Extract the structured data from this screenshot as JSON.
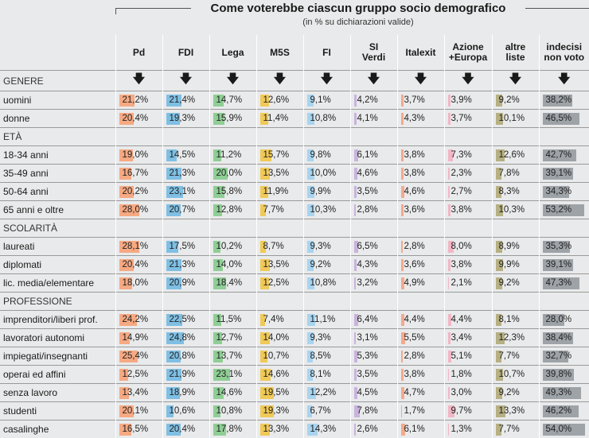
{
  "title": "Come voterebbe ciascun gruppo socio demografico",
  "subtitle": "(in % su dichiarazioni valide)",
  "arrow_glyph": "🡇",
  "chart_data": {
    "type": "table",
    "title": "Come voterebbe ciascun gruppo socio demografico",
    "subtitle": "(in % su dichiarazioni valide)",
    "columns": [
      {
        "label": "Pd",
        "color": "#f6a982"
      },
      {
        "label": "FDI",
        "color": "#7fbfe3"
      },
      {
        "label": "Lega",
        "color": "#8fce95"
      },
      {
        "label": "M5S",
        "color": "#f0c957"
      },
      {
        "label": "FI",
        "color": "#a8d4ef"
      },
      {
        "label": "SI\nVerdi",
        "color": "#c9b3dd"
      },
      {
        "label": "Italexit",
        "color": "#f5a98b"
      },
      {
        "label": "Azione\n+Europa",
        "color": "#f2b6c6"
      },
      {
        "label": "altre\nliste",
        "color": "#b6b083"
      },
      {
        "label": "indecisi\nnon voto",
        "color": "#9ea3a8"
      }
    ],
    "rows": [
      {
        "section": "GENERE"
      },
      {
        "label": "uomini",
        "values": [
          "21,2%",
          "21,4%",
          "14,7%",
          "12,6%",
          "9,1%",
          "4,2%",
          "3,7%",
          "3,9%",
          "9,2%",
          "38,2%"
        ]
      },
      {
        "label": "donne",
        "values": [
          "20,4%",
          "19,3%",
          "15,9%",
          "11,4%",
          "10,8%",
          "4,1%",
          "4,3%",
          "3,7%",
          "10,1%",
          "46,5%"
        ]
      },
      {
        "section": "ETÀ"
      },
      {
        "label": "18-34 anni",
        "values": [
          "19,0%",
          "14,5%",
          "11,2%",
          "15,7%",
          "9,8%",
          "6,1%",
          "3,8%",
          "7,3%",
          "12,6%",
          "42,7%"
        ]
      },
      {
        "label": "35-49 anni",
        "values": [
          "16,7%",
          "21,3%",
          "20,0%",
          "13,5%",
          "10,0%",
          "4,6%",
          "3,8%",
          "2,3%",
          "7,8%",
          "39,1%"
        ]
      },
      {
        "label": "50-64 anni",
        "values": [
          "20,2%",
          "23,1%",
          "15,8%",
          "11,9%",
          "9,9%",
          "3,5%",
          "4,6%",
          "2,7%",
          "8,3%",
          "34,3%"
        ]
      },
      {
        "label": "65 anni e oltre",
        "values": [
          "28,0%",
          "20,7%",
          "12,8%",
          "7,7%",
          "10,3%",
          "2,8%",
          "3,6%",
          "3,8%",
          "10,3%",
          "53,2%"
        ]
      },
      {
        "section": "SCOLARITÀ"
      },
      {
        "label": "laureati",
        "values": [
          "28,1%",
          "17,5%",
          "10,2%",
          "8,7%",
          "9,3%",
          "6,5%",
          "2,8%",
          "8,0%",
          "8,9%",
          "35,3%"
        ]
      },
      {
        "label": "diplomati",
        "values": [
          "20,4%",
          "21,3%",
          "14,0%",
          "13,5%",
          "9,2%",
          "4,3%",
          "3,6%",
          "3,8%",
          "9,9%",
          "39,1%"
        ]
      },
      {
        "label": "lic. media/elementare",
        "values": [
          "18,0%",
          "20,9%",
          "18,4%",
          "12,5%",
          "10,8%",
          "3,2%",
          "4,9%",
          "2,1%",
          "9,2%",
          "47,3%"
        ]
      },
      {
        "section": "PROFESSIONE"
      },
      {
        "label": "imprenditori/liberi prof.",
        "values": [
          "24,2%",
          "22,5%",
          "11,5%",
          "7,4%",
          "11,1%",
          "6,4%",
          "4,4%",
          "4,4%",
          "8,1%",
          "28,0%"
        ]
      },
      {
        "label": "lavoratori autonomi",
        "values": [
          "14,9%",
          "24,8%",
          "12,7%",
          "14,0%",
          "9,3%",
          "3,1%",
          "5,5%",
          "3,4%",
          "12,3%",
          "38,4%"
        ]
      },
      {
        "label": "impiegati/insegnanti",
        "values": [
          "25,4%",
          "20,8%",
          "13,7%",
          "10,7%",
          "8,5%",
          "5,3%",
          "2,8%",
          "5,1%",
          "7,7%",
          "32,7%"
        ]
      },
      {
        "label": "operai ed affini",
        "values": [
          "12,5%",
          "21,9%",
          "23,1%",
          "14,6%",
          "8,1%",
          "3,5%",
          "3,8%",
          "1,8%",
          "10,7%",
          "39,8%"
        ]
      },
      {
        "label": "senza lavoro",
        "values": [
          "13,4%",
          "18,9%",
          "14,6%",
          "19,5%",
          "12,2%",
          "4,5%",
          "4,7%",
          "3,0%",
          "9,2%",
          "49,3%"
        ]
      },
      {
        "label": "studenti",
        "values": [
          "20,1%",
          "10,6%",
          "10,8%",
          "19,3%",
          "6,7%",
          "7,8%",
          "1,7%",
          "9,7%",
          "13,3%",
          "46,2%"
        ]
      },
      {
        "label": "casalinghe",
        "values": [
          "16,5%",
          "20,4%",
          "17,8%",
          "13,3%",
          "14,3%",
          "2,6%",
          "6,1%",
          "1,3%",
          "7,7%",
          "54,0%"
        ]
      }
    ]
  }
}
